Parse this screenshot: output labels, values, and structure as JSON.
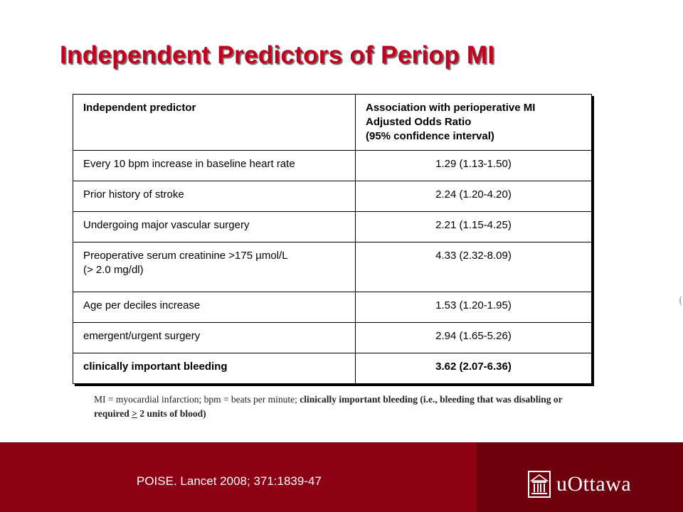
{
  "title": "Independent Predictors of Periop MI",
  "table": {
    "header": {
      "predictor": "Independent predictor",
      "association_line1": "Association with perioperative MI",
      "association_line2": "Adjusted Odds Ratio",
      "association_line3": "(95% confidence interval)"
    },
    "rows": [
      {
        "predictor": "Every 10 bpm increase in baseline heart rate",
        "value": "1.29 (1.13-1.50)"
      },
      {
        "predictor": "Prior history of stroke",
        "value": "2.24 (1.20-4.20)"
      },
      {
        "predictor": "Undergoing major vascular surgery",
        "value": "2.21 (1.15-4.25)"
      },
      {
        "predictor_line1": "Preoperative serum creatinine >175 µmol/L",
        "predictor_line2": "(> 2.0 mg/dl)",
        "value": "4.33 (2.32-8.09)"
      },
      {
        "predictor": "Age per deciles increase",
        "value": "1.53 (1.20-1.95)"
      },
      {
        "predictor": "emergent/urgent surgery",
        "value": "2.94 (1.65-5.26)"
      },
      {
        "predictor": "clinically important bleeding",
        "value": "3.62 (2.07-6.36)"
      }
    ]
  },
  "footnote": {
    "plain": "MI = myocardial infarction; bpm = beats per minute; ",
    "bold_start": "clinically important bleeding (i.e., bleeding that was disabling or required ",
    "underlined": ">",
    "bold_end": " 2 units of blood)"
  },
  "footer": {
    "citation": "POISE. Lancet 2008; 371:1839-47",
    "logo_text": "uOttawa",
    "background_color": "#8b0012",
    "logo_panel_color": "#6e000e"
  },
  "colors": {
    "title": "#c3001e"
  }
}
